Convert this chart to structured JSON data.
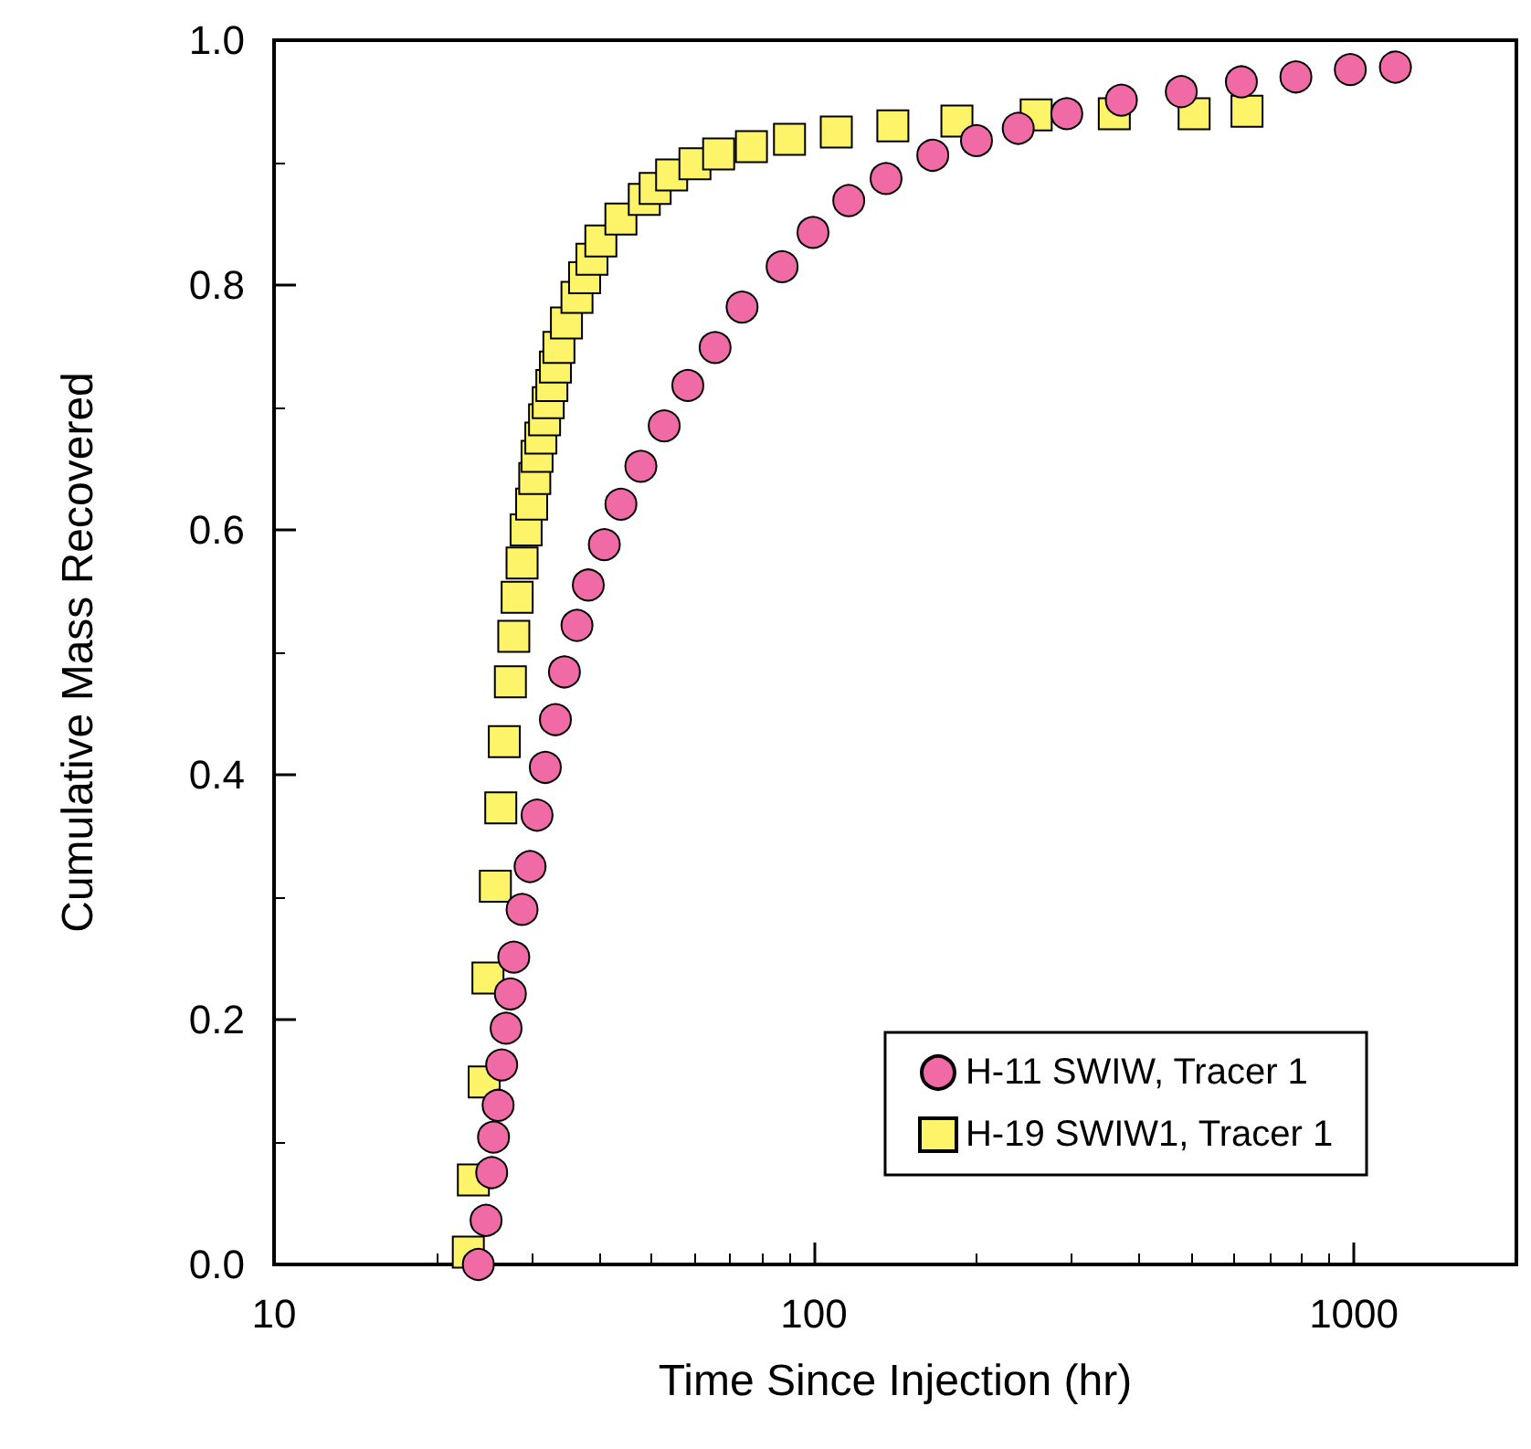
{
  "chart_data": {
    "type": "scatter",
    "xlabel": "Time Since Injection (hr)",
    "ylabel": "Cumulative Mass Recovered",
    "log": "x",
    "xlim": [
      10,
      2000
    ],
    "xticks": [
      10,
      100,
      1000
    ],
    "ylim": [
      0,
      1
    ],
    "yticks": [
      {
        "value": 0,
        "label": "0.0"
      },
      0.2,
      0.4,
      0.6,
      0.8,
      {
        "value": 1,
        "label": "1.0"
      }
    ],
    "grid": false,
    "legend": "bottom right",
    "series": [
      {
        "name": "H-11 SWIW, Tracer 1",
        "color": "#f06aa5",
        "marker": "circle",
        "x": [
          23.9,
          24.7,
          25.3,
          25.5,
          26.0,
          26.4,
          26.9,
          27.4,
          27.8,
          28.8,
          29.8,
          30.7,
          31.8,
          33.2,
          34.5,
          36.4,
          38.2,
          40.9,
          43.9,
          47.8,
          52.8,
          58.4,
          65.6,
          73.6,
          87.3,
          99.6,
          116,
          136,
          166,
          200,
          239,
          294,
          371,
          479,
          619,
          781,
          985,
          1194
        ],
        "values": [
          0.0,
          0.036,
          0.075,
          0.104,
          0.13,
          0.163,
          0.193,
          0.221,
          0.251,
          0.29,
          0.325,
          0.367,
          0.406,
          0.445,
          0.484,
          0.522,
          0.555,
          0.588,
          0.621,
          0.652,
          0.685,
          0.718,
          0.749,
          0.782,
          0.815,
          0.843,
          0.869,
          0.887,
          0.906,
          0.918,
          0.928,
          0.94,
          0.951,
          0.958,
          0.966,
          0.97,
          0.976,
          0.978
        ]
      },
      {
        "name": "H-19 SWIW1, Tracer 1",
        "color": "#fdf46a",
        "marker": "square",
        "x": [
          22.9,
          23.4,
          24.5,
          24.9,
          25.7,
          26.3,
          26.7,
          27.4,
          27.8,
          28.2,
          28.8,
          29.3,
          30.0,
          30.4,
          30.7,
          31.2,
          31.7,
          32.2,
          32.7,
          33.2,
          33.7,
          34.8,
          36.4,
          37.6,
          38.8,
          40.3,
          43.9,
          48.5,
          50.8,
          54.5,
          60.2,
          66.6,
          76.6,
          90.1,
          110,
          140,
          184,
          258,
          360,
          506,
          634
        ],
        "values": [
          0.01,
          0.069,
          0.149,
          0.234,
          0.309,
          0.373,
          0.427,
          0.476,
          0.513,
          0.545,
          0.573,
          0.6,
          0.621,
          0.642,
          0.66,
          0.675,
          0.69,
          0.704,
          0.718,
          0.733,
          0.749,
          0.769,
          0.79,
          0.806,
          0.821,
          0.836,
          0.854,
          0.87,
          0.879,
          0.89,
          0.899,
          0.907,
          0.913,
          0.919,
          0.925,
          0.93,
          0.934,
          0.939,
          0.94,
          0.94,
          0.942
        ]
      }
    ]
  }
}
